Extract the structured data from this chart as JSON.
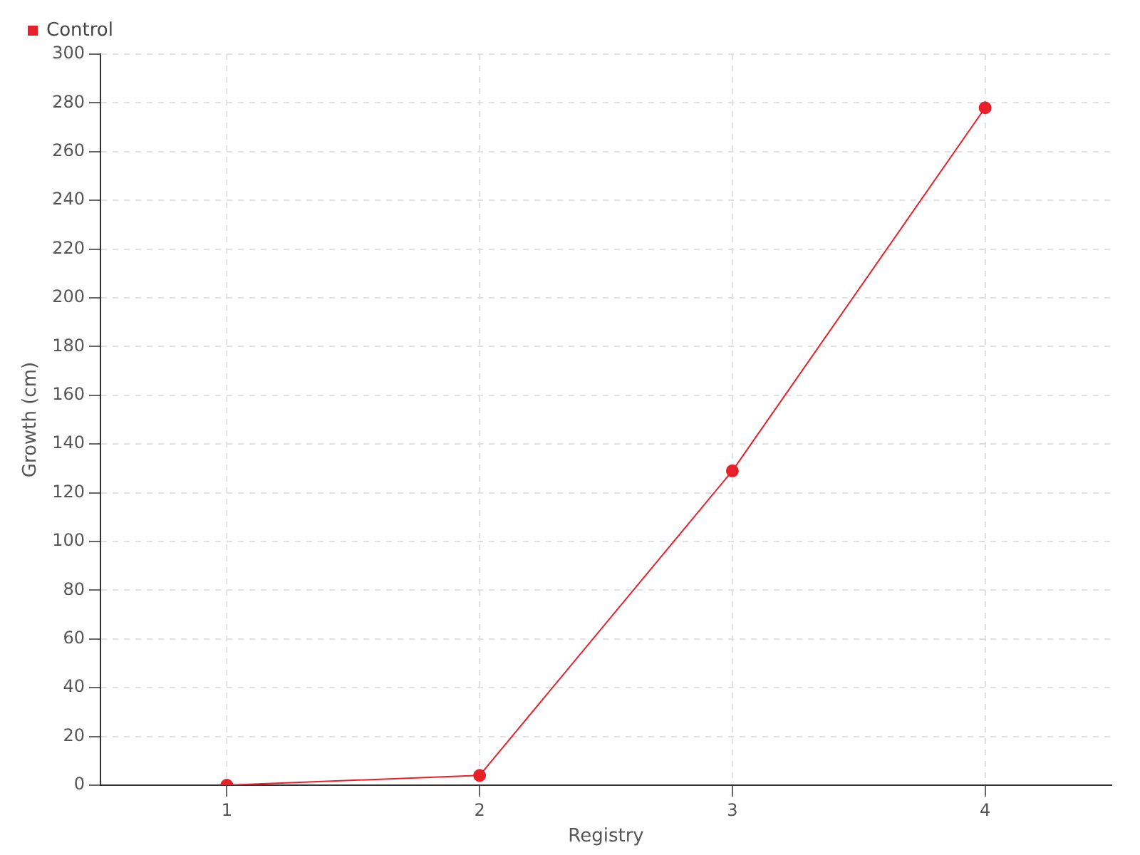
{
  "chart_data": {
    "type": "line",
    "xlabel": "Registry",
    "ylabel": "Growth (cm)",
    "categories": [
      "1",
      "2",
      "3",
      "4"
    ],
    "series": [
      {
        "name": "Control",
        "color": "#e8202a",
        "values": [
          0,
          4,
          129,
          278
        ]
      }
    ],
    "ylim": [
      0,
      300
    ],
    "yticks": [
      0,
      20,
      40,
      60,
      80,
      100,
      120,
      140,
      160,
      180,
      200,
      220,
      240,
      260,
      280,
      300
    ],
    "grid": true,
    "legend": "top left",
    "marker": "circle"
  }
}
